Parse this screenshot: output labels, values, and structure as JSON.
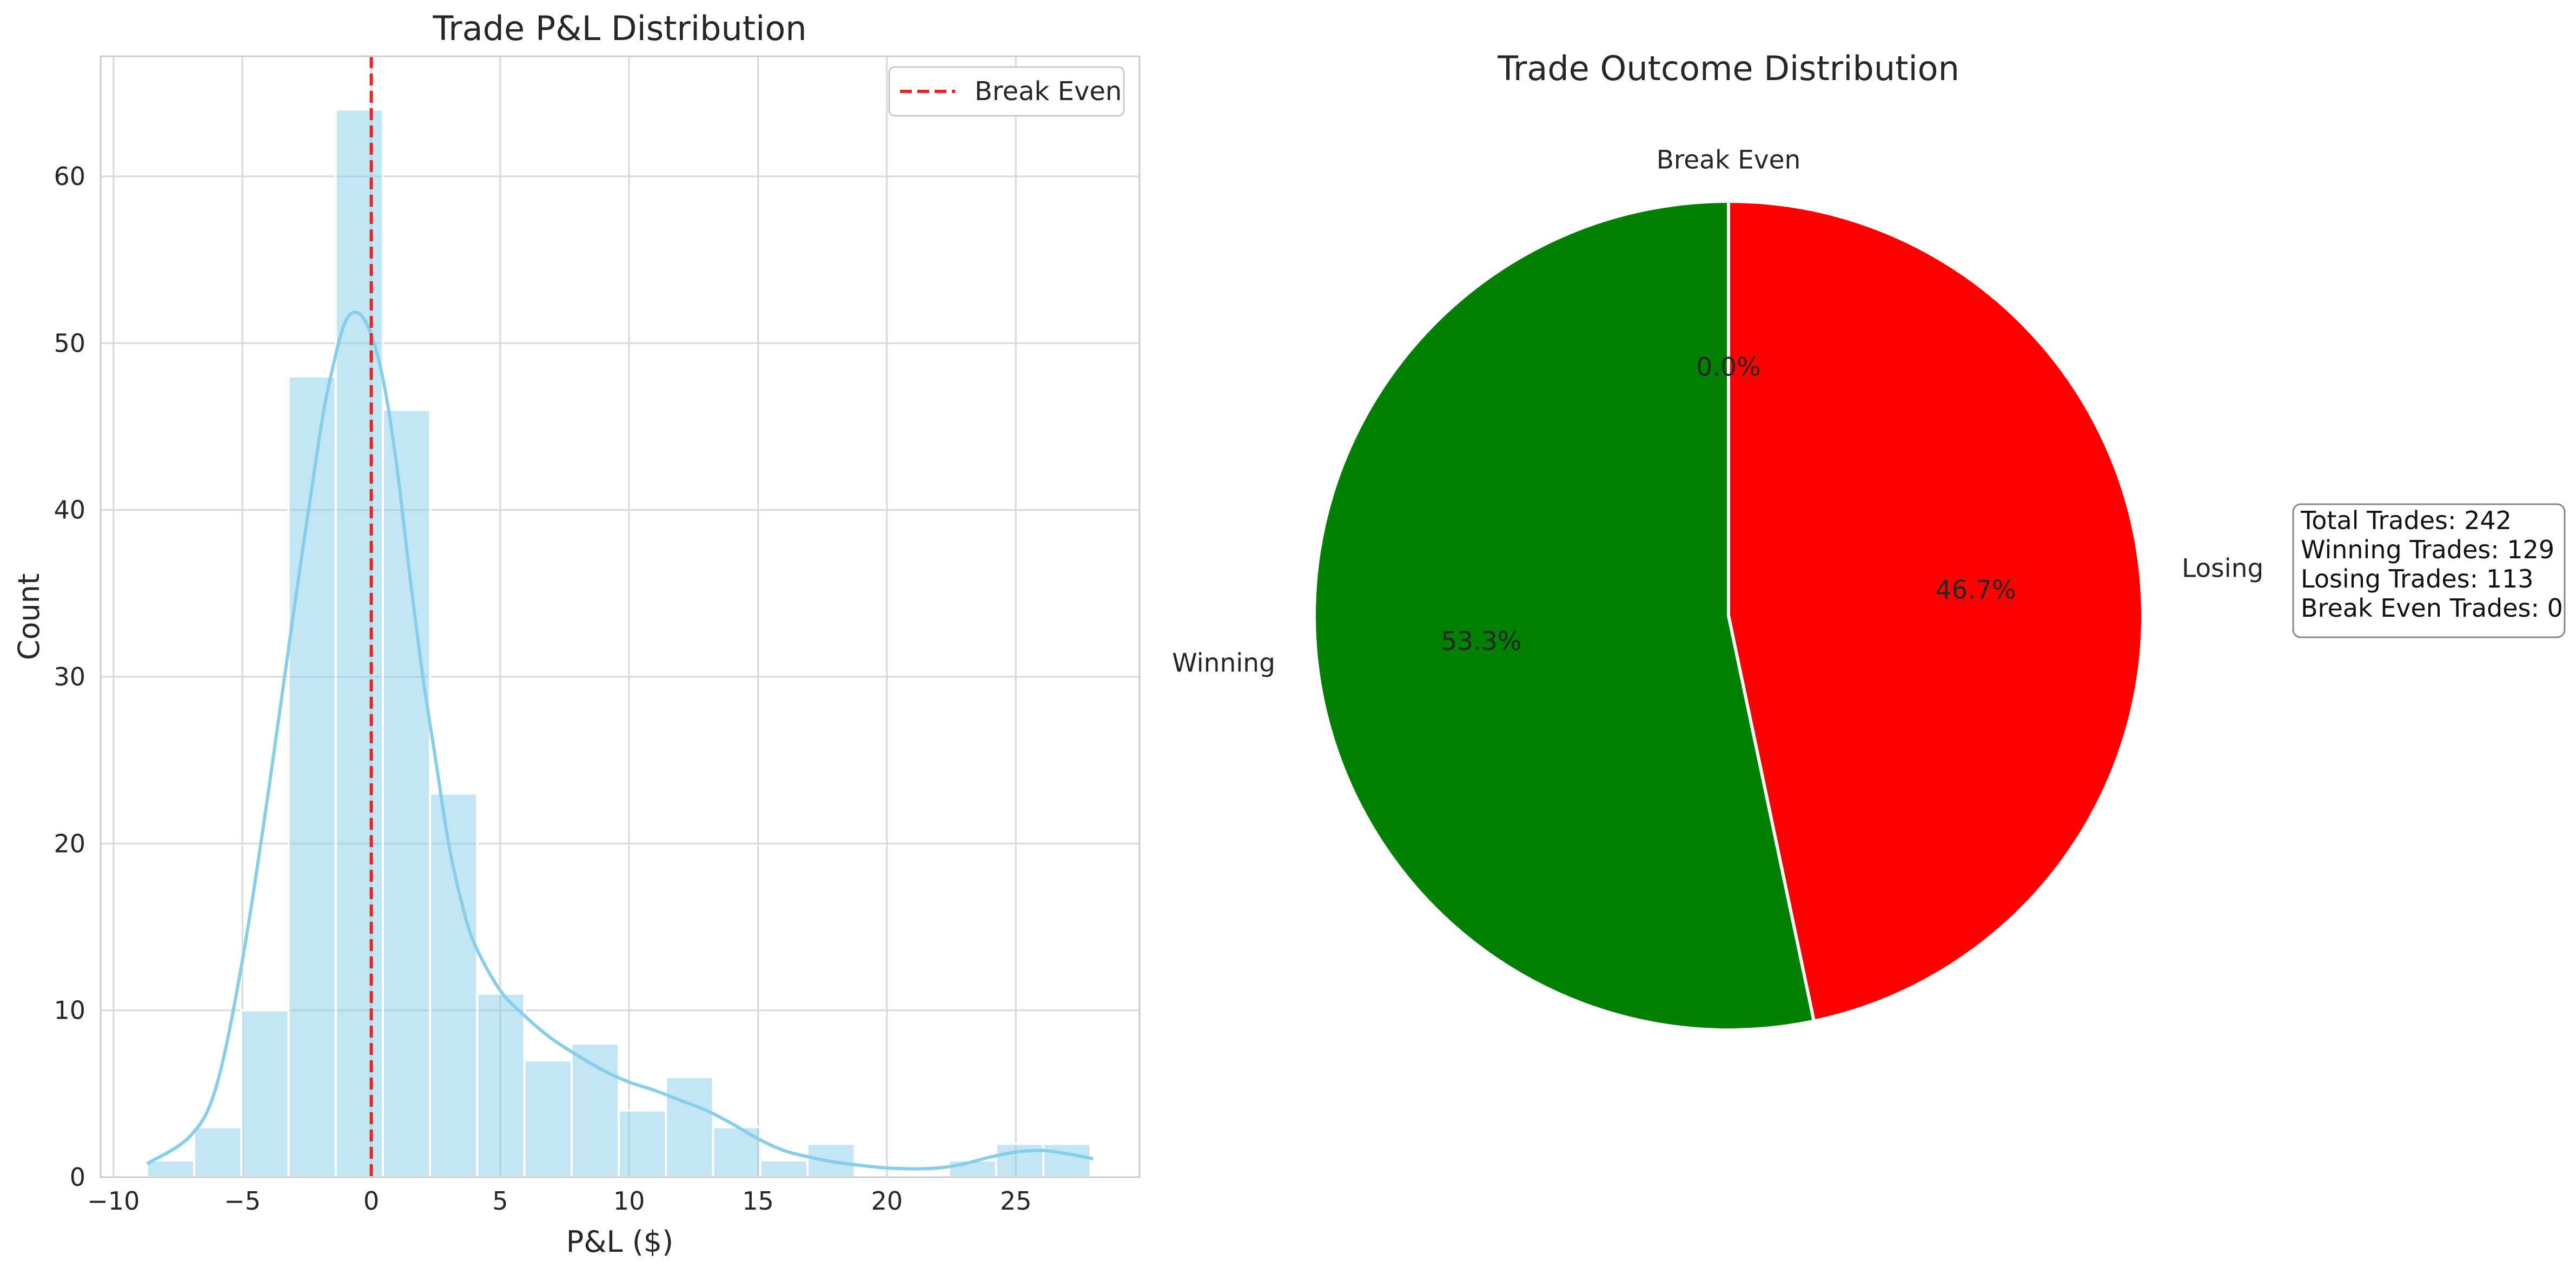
{
  "chart_data": [
    {
      "type": "bar",
      "subtype": "histogram-with-kde",
      "title": "Trade P&L Distribution",
      "xlabel": "P&L ($)",
      "ylabel": "Count",
      "xlim": [
        -10.5,
        29.8
      ],
      "ylim": [
        0,
        67.2
      ],
      "xticks": [
        -10,
        -5,
        0,
        5,
        10,
        15,
        20,
        25
      ],
      "yticks": [
        0,
        10,
        20,
        30,
        40,
        50,
        60
      ],
      "xtick_labels": [
        "−10",
        "−5",
        "0",
        "5",
        "10",
        "15",
        "20",
        "25"
      ],
      "ytick_labels": [
        "0",
        "10",
        "20",
        "30",
        "40",
        "50",
        "60"
      ],
      "grid": true,
      "bar_color": "#87CEEB",
      "kde_color": "#87CEEB",
      "bins": {
        "start": -8.7,
        "width": 1.83,
        "counts": [
          1,
          3,
          10,
          48,
          64,
          46,
          23,
          11,
          7,
          8,
          4,
          6,
          3,
          1,
          2,
          0,
          0,
          1,
          2,
          2
        ]
      },
      "kde": {
        "x": [
          -8.7,
          -7.0,
          -6.0,
          -5.0,
          -4.0,
          -3.0,
          -2.0,
          -1.5,
          -1.0,
          -0.5,
          0.0,
          0.5,
          1.0,
          1.5,
          2.0,
          2.5,
          3.0,
          3.5,
          4.0,
          5.0,
          6.0,
          7.0,
          8.0,
          9.0,
          10.0,
          11.0,
          12.0,
          13.0,
          14.0,
          15.0,
          16.0,
          17.0,
          18.0,
          19.0,
          20.0,
          21.0,
          22.0,
          23.0,
          24.0,
          25.0,
          26.0,
          27.0,
          28.0
        ],
        "y": [
          0.8,
          2.5,
          5.5,
          13.0,
          23.0,
          34.0,
          44.5,
          48.5,
          51.3,
          51.8,
          50.5,
          47.5,
          42.5,
          36.0,
          30.0,
          25.0,
          20.0,
          16.5,
          14.0,
          11.2,
          9.6,
          8.3,
          7.3,
          6.4,
          5.7,
          5.2,
          4.6,
          4.0,
          3.2,
          2.3,
          1.6,
          1.2,
          0.9,
          0.7,
          0.55,
          0.5,
          0.55,
          0.8,
          1.2,
          1.5,
          1.6,
          1.4,
          1.1
        ]
      },
      "reference_lines": [
        {
          "x": 0,
          "label": "Break Even",
          "color": "#e8251f",
          "style": "dashed"
        }
      ],
      "legend": {
        "position": "top-right",
        "entries": [
          "Break Even"
        ]
      }
    },
    {
      "type": "pie",
      "title": "Trade Outcome Distribution",
      "start_angle_deg": 90,
      "direction": "clockwise",
      "slices": [
        {
          "label": "Losing",
          "value": 113,
          "percent": "46.7%",
          "color": "#ff0000"
        },
        {
          "label": "Winning",
          "value": 129,
          "percent": "53.3%",
          "color": "#008000"
        },
        {
          "label": "Break Even",
          "value": 0,
          "percent": "0.0%",
          "color": "#ffffff"
        }
      ],
      "stats_box": {
        "lines": [
          "Total Trades: 242",
          "Winning Trades: 129",
          "Losing Trades: 113",
          "Break Even Trades: 0"
        ],
        "position": "right"
      }
    }
  ]
}
